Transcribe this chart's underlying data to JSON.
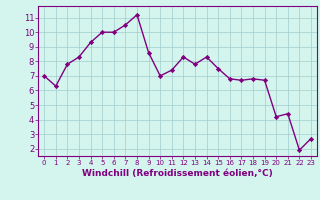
{
  "x": [
    0,
    1,
    2,
    3,
    4,
    5,
    6,
    7,
    8,
    9,
    10,
    11,
    12,
    13,
    14,
    15,
    16,
    17,
    18,
    19,
    20,
    21,
    22,
    23
  ],
  "y": [
    7.0,
    6.3,
    7.8,
    8.3,
    9.3,
    10.0,
    10.0,
    10.5,
    11.2,
    8.6,
    7.0,
    7.4,
    8.3,
    7.8,
    8.3,
    7.5,
    6.8,
    6.7,
    6.8,
    6.7,
    4.2,
    4.4,
    1.9,
    2.7
  ],
  "line_color": "#800080",
  "marker": "D",
  "marker_size": 2.2,
  "line_width": 1.0,
  "bg_color": "#d4f5ee",
  "grid_color": "#a0cccc",
  "xlabel": "Windchill (Refroidissement éolien,°C)",
  "xlabel_color": "#800080",
  "tick_color": "#800080",
  "spine_color": "#800080",
  "ylim": [
    1.5,
    11.8
  ],
  "xlim": [
    -0.5,
    23.5
  ],
  "yticks": [
    2,
    3,
    4,
    5,
    6,
    7,
    8,
    9,
    10,
    11
  ],
  "xticks": [
    0,
    1,
    2,
    3,
    4,
    5,
    6,
    7,
    8,
    9,
    10,
    11,
    12,
    13,
    14,
    15,
    16,
    17,
    18,
    19,
    20,
    21,
    22,
    23
  ],
  "xlabel_fontsize": 6.5,
  "tick_fontsize_x": 5.0,
  "tick_fontsize_y": 6.0
}
